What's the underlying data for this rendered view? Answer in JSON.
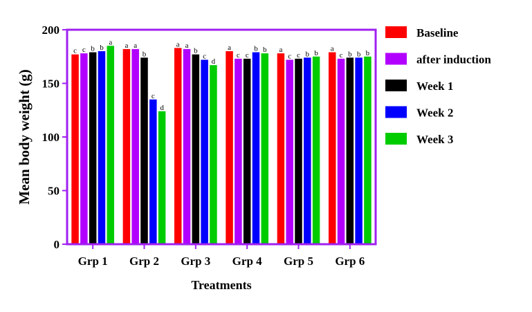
{
  "chart_data": {
    "type": "bar",
    "xlabel": "Treatments",
    "ylabel": "Mean body weight (g)",
    "ylim": [
      0,
      200
    ],
    "yticks": [
      0,
      50,
      100,
      150,
      200
    ],
    "categories": [
      "Grp 1",
      "Grp 2",
      "Grp 3",
      "Grp 4",
      "Grp 5",
      "Grp 6"
    ],
    "series": [
      {
        "name": "Baseline",
        "color": "#ff0000",
        "values": [
          177,
          182,
          183,
          180,
          178,
          179
        ],
        "labels": [
          "c",
          "a",
          "a",
          "a",
          "a",
          "a"
        ]
      },
      {
        "name": "after induction",
        "color": "#b200ff",
        "values": [
          178,
          182,
          182,
          173,
          172,
          173
        ],
        "labels": [
          "c",
          "a",
          "a",
          "c",
          "c",
          "c"
        ]
      },
      {
        "name": "Week 1",
        "color": "#000000",
        "values": [
          179,
          174,
          177,
          173,
          173,
          174
        ],
        "labels": [
          "b",
          "b",
          "b",
          "c",
          "c",
          "b"
        ]
      },
      {
        "name": "Week 2",
        "color": "#0000ff",
        "values": [
          180,
          135,
          172,
          179,
          174,
          174
        ],
        "labels": [
          "b",
          "c",
          "c",
          "b",
          "b",
          "b"
        ]
      },
      {
        "name": "Week 3",
        "color": "#00cc00",
        "values": [
          185,
          124,
          167,
          178,
          175,
          175
        ],
        "labels": [
          "a",
          "d",
          "d",
          "b",
          "b",
          "b"
        ]
      }
    ],
    "frame_color": "#a020f0",
    "legend_position": "right"
  }
}
